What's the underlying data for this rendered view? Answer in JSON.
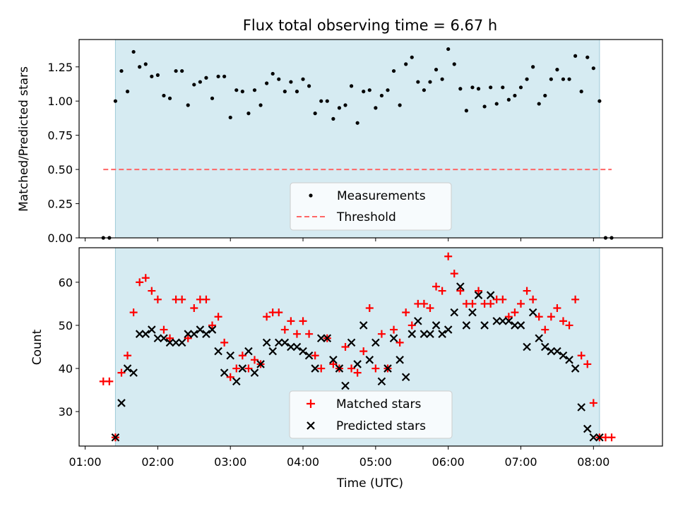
{
  "figure": {
    "title": "Flux total observing time = 6.67 h",
    "xlabel": "Time (UTC)",
    "x_tick_labels": [
      "01:00",
      "02:00",
      "03:00",
      "04:00",
      "05:00",
      "06:00",
      "07:00",
      "08:00"
    ],
    "observing_window": {
      "start": "01:25",
      "end": "08:05",
      "color": "#add8e6"
    }
  },
  "chart_data": [
    {
      "type": "scatter",
      "ylabel": "Matched/Predicted stars",
      "xlim": [
        "00:55",
        "08:57"
      ],
      "ylim": [
        0,
        1.45
      ],
      "y_ticks": [
        0,
        0.25,
        0.5,
        0.75,
        1.0,
        1.25
      ],
      "y_tick_labels": [
        "0.00",
        "0.25",
        "0.50",
        "0.75",
        "1.00",
        "1.25"
      ],
      "legend_position": "bottom-center",
      "series": [
        {
          "name": "Measurements",
          "marker": "dot",
          "color": "#000000",
          "x": [
            "01:15",
            "01:20",
            "01:25",
            "01:30",
            "01:35",
            "01:40",
            "01:45",
            "01:50",
            "01:55",
            "02:00",
            "02:05",
            "02:10",
            "02:15",
            "02:20",
            "02:25",
            "02:30",
            "02:35",
            "02:40",
            "02:45",
            "02:50",
            "02:55",
            "03:00",
            "03:05",
            "03:10",
            "03:15",
            "03:20",
            "03:25",
            "03:30",
            "03:35",
            "03:40",
            "03:45",
            "03:50",
            "03:55",
            "04:00",
            "04:05",
            "04:10",
            "04:15",
            "04:20",
            "04:25",
            "04:30",
            "04:35",
            "04:40",
            "04:45",
            "04:50",
            "04:55",
            "05:00",
            "05:05",
            "05:10",
            "05:15",
            "05:20",
            "05:25",
            "05:30",
            "05:35",
            "05:40",
            "05:45",
            "05:50",
            "05:55",
            "06:00",
            "06:05",
            "06:10",
            "06:15",
            "06:20",
            "06:25",
            "06:30",
            "06:35",
            "06:40",
            "06:45",
            "06:50",
            "06:55",
            "07:00",
            "07:05",
            "07:10",
            "07:15",
            "07:20",
            "07:25",
            "07:30",
            "07:35",
            "07:40",
            "07:45",
            "07:50",
            "07:55",
            "08:00",
            "08:05",
            "08:10",
            "08:15"
          ],
          "y": [
            0,
            0,
            1.0,
            1.22,
            1.07,
            1.36,
            1.25,
            1.27,
            1.18,
            1.19,
            1.04,
            1.02,
            1.22,
            1.22,
            0.97,
            1.12,
            1.14,
            1.17,
            1.02,
            1.18,
            1.18,
            0.88,
            1.08,
            1.07,
            0.91,
            1.08,
            0.97,
            1.13,
            1.2,
            1.16,
            1.07,
            1.14,
            1.07,
            1.16,
            1.11,
            0.91,
            1.0,
            1.0,
            0.87,
            0.95,
            0.97,
            1.11,
            0.84,
            1.07,
            1.08,
            0.95,
            1.04,
            1.08,
            1.22,
            0.97,
            1.27,
            1.32,
            1.14,
            1.08,
            1.14,
            1.23,
            1.16,
            1.38,
            1.27,
            1.09,
            0.93,
            1.1,
            1.09,
            0.96,
            1.1,
            0.98,
            1.1,
            1.01,
            1.04,
            1.1,
            1.16,
            1.25,
            0.98,
            1.04,
            1.16,
            1.23,
            1.16,
            1.16,
            1.33,
            1.07,
            1.32,
            1.24,
            1.0,
            0,
            0
          ]
        },
        {
          "name": "Threshold",
          "marker": "dashed-line",
          "color": "#ff6666",
          "x": [
            "01:15",
            "08:15"
          ],
          "y": [
            0.5,
            0.5
          ]
        }
      ]
    },
    {
      "type": "scatter",
      "ylabel": "Count",
      "xlim": [
        "00:55",
        "08:57"
      ],
      "ylim": [
        22,
        68
      ],
      "y_ticks": [
        30,
        40,
        50,
        60
      ],
      "y_tick_labels": [
        "30",
        "40",
        "50",
        "60"
      ],
      "legend_position": "bottom-center",
      "series": [
        {
          "name": "Matched stars",
          "marker": "plus",
          "color": "#ff0000",
          "x": [
            "01:15",
            "01:20",
            "01:25",
            "01:30",
            "01:35",
            "01:40",
            "01:45",
            "01:50",
            "01:55",
            "02:00",
            "02:05",
            "02:10",
            "02:15",
            "02:20",
            "02:25",
            "02:30",
            "02:35",
            "02:40",
            "02:45",
            "02:50",
            "02:55",
            "03:00",
            "03:05",
            "03:10",
            "03:15",
            "03:20",
            "03:25",
            "03:30",
            "03:35",
            "03:40",
            "03:45",
            "03:50",
            "03:55",
            "04:00",
            "04:05",
            "04:10",
            "04:15",
            "04:20",
            "04:25",
            "04:30",
            "04:35",
            "04:40",
            "04:45",
            "04:50",
            "04:55",
            "05:00",
            "05:05",
            "05:10",
            "05:15",
            "05:20",
            "05:25",
            "05:30",
            "05:35",
            "05:40",
            "05:45",
            "05:50",
            "05:55",
            "06:00",
            "06:05",
            "06:10",
            "06:15",
            "06:20",
            "06:25",
            "06:30",
            "06:35",
            "06:40",
            "06:45",
            "06:50",
            "06:55",
            "07:00",
            "07:05",
            "07:10",
            "07:15",
            "07:20",
            "07:25",
            "07:30",
            "07:35",
            "07:40",
            "07:45",
            "07:50",
            "07:55",
            "08:00",
            "08:05",
            "08:10",
            "08:15"
          ],
          "y": [
            37,
            37,
            24,
            39,
            43,
            53,
            60,
            61,
            58,
            56,
            49,
            47,
            56,
            56,
            47,
            54,
            56,
            56,
            50,
            52,
            46,
            38,
            40,
            43,
            40,
            42,
            41,
            52,
            53,
            53,
            49,
            51,
            48,
            51,
            48,
            43,
            40,
            47,
            41,
            40,
            45,
            40,
            39,
            44,
            54,
            40,
            48,
            40,
            49,
            46,
            53,
            50,
            55,
            55,
            54,
            59,
            58,
            66,
            62,
            58,
            55,
            55,
            58,
            55,
            55,
            56,
            56,
            52,
            53,
            55,
            58,
            56,
            52,
            49,
            52,
            54,
            51,
            50,
            56,
            43,
            41,
            32,
            24,
            24,
            24
          ]
        },
        {
          "name": "Predicted stars",
          "marker": "x",
          "color": "#000000",
          "x": [
            "01:25",
            "01:30",
            "01:35",
            "01:40",
            "01:45",
            "01:50",
            "01:55",
            "02:00",
            "02:05",
            "02:10",
            "02:15",
            "02:20",
            "02:25",
            "02:30",
            "02:35",
            "02:40",
            "02:45",
            "02:50",
            "02:55",
            "03:00",
            "03:05",
            "03:10",
            "03:15",
            "03:20",
            "03:25",
            "03:30",
            "03:35",
            "03:40",
            "03:45",
            "03:50",
            "03:55",
            "04:00",
            "04:05",
            "04:10",
            "04:15",
            "04:20",
            "04:25",
            "04:30",
            "04:35",
            "04:40",
            "04:45",
            "04:50",
            "04:55",
            "05:00",
            "05:05",
            "05:10",
            "05:15",
            "05:20",
            "05:25",
            "05:30",
            "05:35",
            "05:40",
            "05:45",
            "05:50",
            "05:55",
            "06:00",
            "06:05",
            "06:10",
            "06:15",
            "06:20",
            "06:25",
            "06:30",
            "06:35",
            "06:40",
            "06:45",
            "06:50",
            "06:55",
            "07:00",
            "07:05",
            "07:10",
            "07:15",
            "07:20",
            "07:25",
            "07:30",
            "07:35",
            "07:40",
            "07:45",
            "07:50",
            "07:55",
            "08:00",
            "08:05"
          ],
          "y": [
            24,
            32,
            40,
            39,
            48,
            48,
            49,
            47,
            47,
            46,
            46,
            46,
            48,
            48,
            49,
            48,
            49,
            44,
            39,
            43,
            37,
            40,
            44,
            39,
            41,
            46,
            44,
            46,
            46,
            45,
            45,
            44,
            43,
            40,
            47,
            47,
            42,
            40,
            36,
            46,
            41,
            50,
            42,
            46,
            37,
            40,
            47,
            42,
            38,
            48,
            51,
            48,
            48,
            50,
            48,
            49,
            53,
            59,
            50,
            53,
            57,
            50,
            57,
            51,
            51,
            51,
            50,
            50,
            45,
            53,
            47,
            45,
            44,
            44,
            43,
            42,
            40,
            31,
            26,
            24,
            24
          ]
        }
      ]
    }
  ]
}
